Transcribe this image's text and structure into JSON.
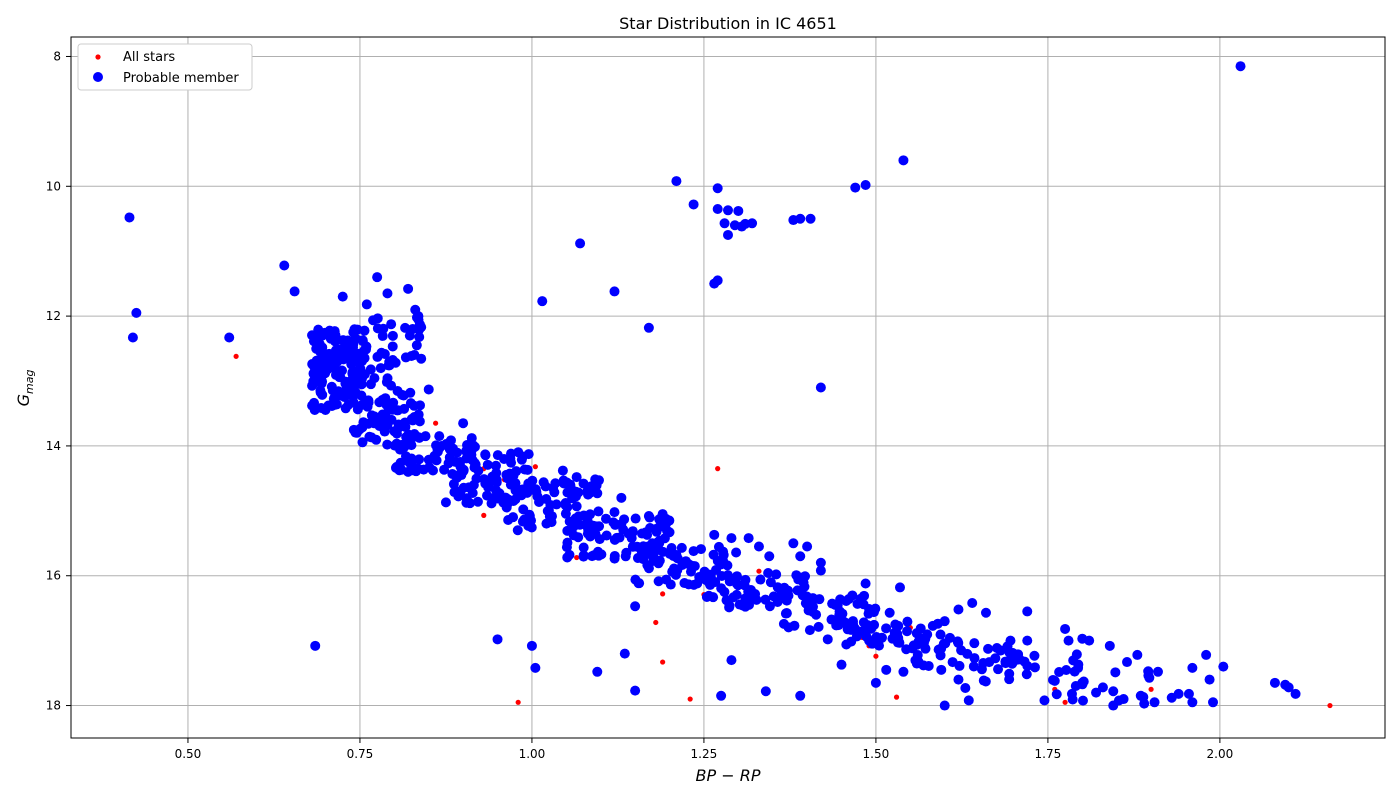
{
  "chart_data": {
    "type": "scatter",
    "title": "Star Distribution in IC 4651",
    "xlabel": "BP − RP",
    "ylabel": "G",
    "ylabel_sub": "mag",
    "xlim": [
      0.33,
      2.24
    ],
    "ylim": [
      18.5,
      7.7
    ],
    "y_inverted": true,
    "x_ticks": [
      0.5,
      0.75,
      1.0,
      1.25,
      1.5,
      1.75,
      2.0
    ],
    "x_tick_labels": [
      "0.50",
      "0.75",
      "1.00",
      "1.25",
      "1.50",
      "1.75",
      "2.00"
    ],
    "y_ticks": [
      8,
      10,
      12,
      14,
      16,
      18
    ],
    "y_tick_labels": [
      "8",
      "10",
      "12",
      "14",
      "16",
      "18"
    ],
    "grid": true,
    "legend_position": "top-left",
    "series": [
      {
        "name": "All stars",
        "color": "#ff0000",
        "marker": "small-dot",
        "points": [
          [
            0.57,
            12.62
          ],
          [
            0.86,
            13.65
          ],
          [
            0.93,
            14.35
          ],
          [
            0.96,
            14.52
          ],
          [
            1.005,
            14.32
          ],
          [
            0.93,
            15.07
          ],
          [
            1.065,
            15.72
          ],
          [
            1.19,
            16.28
          ],
          [
            1.25,
            16.29
          ],
          [
            1.33,
            15.93
          ],
          [
            1.18,
            16.72
          ],
          [
            1.19,
            17.33
          ],
          [
            1.23,
            17.9
          ],
          [
            0.98,
            17.95
          ],
          [
            1.48,
            16.95
          ],
          [
            1.49,
            17.08
          ],
          [
            1.5,
            17.24
          ],
          [
            1.53,
            17.87
          ],
          [
            1.62,
            16.98
          ],
          [
            1.76,
            17.75
          ],
          [
            1.775,
            17.95
          ],
          [
            1.8,
            17.93
          ],
          [
            1.9,
            17.75
          ],
          [
            2.16,
            18.0
          ],
          [
            1.27,
            14.35
          ],
          [
            1.55,
            16.8
          ]
        ]
      },
      {
        "name": "Probable member",
        "color": "#0000ff",
        "marker": "dot",
        "points": [
          [
            2.03,
            8.15
          ],
          [
            1.54,
            9.6
          ],
          [
            1.21,
            9.92
          ],
          [
            1.47,
            10.02
          ],
          [
            1.485,
            9.98
          ],
          [
            1.27,
            10.03
          ],
          [
            1.235,
            10.28
          ],
          [
            1.27,
            10.35
          ],
          [
            1.285,
            10.37
          ],
          [
            1.3,
            10.38
          ],
          [
            1.28,
            10.57
          ],
          [
            1.295,
            10.6
          ],
          [
            1.305,
            10.62
          ],
          [
            1.31,
            10.58
          ],
          [
            1.32,
            10.57
          ],
          [
            1.285,
            10.75
          ],
          [
            1.38,
            10.52
          ],
          [
            1.39,
            10.5
          ],
          [
            1.405,
            10.5
          ],
          [
            1.07,
            10.88
          ],
          [
            0.415,
            10.48
          ],
          [
            0.64,
            11.22
          ],
          [
            0.655,
            11.62
          ],
          [
            0.425,
            11.95
          ],
          [
            0.42,
            12.33
          ],
          [
            0.56,
            12.33
          ],
          [
            1.27,
            11.45
          ],
          [
            1.265,
            11.5
          ],
          [
            1.12,
            11.62
          ],
          [
            1.015,
            11.77
          ],
          [
            1.17,
            12.18
          ],
          [
            1.42,
            13.1
          ],
          [
            0.685,
            17.08
          ],
          [
            0.95,
            16.98
          ],
          [
            1.0,
            17.08
          ],
          [
            1.005,
            17.42
          ],
          [
            1.095,
            17.48
          ],
          [
            1.135,
            17.2
          ],
          [
            1.15,
            16.47
          ],
          [
            1.15,
            17.77
          ],
          [
            1.275,
            17.85
          ],
          [
            1.29,
            17.3
          ],
          [
            1.34,
            17.78
          ],
          [
            1.39,
            17.85
          ],
          [
            1.45,
            17.37
          ],
          [
            1.6,
            18.0
          ],
          [
            1.265,
            15.37
          ],
          [
            1.29,
            15.42
          ],
          [
            1.315,
            15.42
          ],
          [
            1.33,
            15.55
          ],
          [
            1.345,
            15.7
          ],
          [
            1.355,
            15.98
          ],
          [
            1.38,
            15.5
          ],
          [
            1.39,
            15.7
          ],
          [
            1.4,
            15.55
          ],
          [
            1.42,
            15.8
          ],
          [
            1.42,
            15.92
          ],
          [
            1.485,
            16.12
          ],
          [
            1.535,
            16.18
          ],
          [
            1.52,
            16.57
          ],
          [
            1.6,
            16.7
          ],
          [
            1.62,
            16.52
          ],
          [
            1.64,
            16.42
          ],
          [
            1.66,
            16.57
          ],
          [
            1.72,
            16.55
          ],
          [
            1.72,
            17.0
          ],
          [
            1.775,
            16.82
          ],
          [
            1.78,
            17.0
          ],
          [
            1.8,
            16.97
          ],
          [
            1.81,
            17.0
          ],
          [
            1.84,
            17.08
          ],
          [
            1.865,
            17.33
          ],
          [
            1.88,
            17.22
          ],
          [
            1.91,
            17.48
          ],
          [
            1.96,
            17.42
          ],
          [
            1.98,
            17.22
          ],
          [
            2.005,
            17.4
          ],
          [
            1.985,
            17.6
          ],
          [
            2.08,
            17.65
          ],
          [
            2.095,
            17.68
          ],
          [
            2.1,
            17.72
          ],
          [
            2.11,
            17.82
          ],
          [
            1.96,
            17.95
          ],
          [
            1.99,
            17.95
          ],
          [
            1.955,
            17.82
          ],
          [
            1.94,
            17.82
          ],
          [
            1.93,
            17.88
          ],
          [
            1.905,
            17.95
          ],
          [
            1.885,
            17.85
          ],
          [
            1.89,
            17.97
          ],
          [
            1.845,
            18.0
          ],
          [
            1.86,
            17.9
          ],
          [
            1.845,
            17.78
          ],
          [
            1.83,
            17.72
          ],
          [
            1.8,
            17.65
          ],
          [
            1.76,
            17.62
          ],
          [
            1.745,
            17.92
          ],
          [
            1.785,
            17.82
          ],
          [
            1.82,
            17.8
          ],
          [
            1.635,
            17.92
          ],
          [
            1.63,
            17.73
          ],
          [
            1.62,
            17.6
          ],
          [
            1.595,
            17.45
          ],
          [
            1.5,
            17.65
          ],
          [
            1.515,
            17.45
          ],
          [
            1.54,
            17.48
          ],
          [
            1.43,
            16.98
          ],
          [
            0.82,
            14.4
          ],
          [
            0.875,
            14.87
          ],
          [
            0.9,
            13.65
          ],
          [
            0.85,
            13.13
          ],
          [
            0.835,
            12.0
          ],
          [
            0.82,
            11.58
          ],
          [
            0.79,
            11.65
          ],
          [
            0.775,
            11.4
          ],
          [
            0.76,
            11.82
          ],
          [
            0.725,
            11.7
          ],
          [
            1.045,
            14.38
          ],
          [
            1.065,
            14.48
          ],
          [
            1.075,
            14.58
          ],
          [
            1.085,
            14.65
          ],
          [
            1.095,
            14.73
          ],
          [
            1.065,
            14.93
          ],
          [
            1.13,
            14.8
          ],
          [
            1.12,
            15.02
          ],
          [
            1.17,
            15.08
          ],
          [
            1.19,
            15.05
          ],
          [
            1.195,
            15.17
          ],
          [
            1.185,
            15.13
          ],
          [
            1.18,
            15.28
          ],
          [
            1.2,
            15.33
          ],
          [
            1.185,
            15.5
          ],
          [
            1.175,
            15.5
          ],
          [
            1.145,
            15.42
          ],
          [
            1.16,
            15.35
          ],
          [
            1.21,
            15.68
          ],
          [
            1.235,
            15.62
          ]
        ],
        "bands": [
          {
            "x0": 0.68,
            "x1": 0.76,
            "ymin": 12.2,
            "ymax": 13.45,
            "count": 150
          },
          {
            "x0": 0.76,
            "x1": 0.84,
            "ymin": 11.9,
            "ymax": 13.7,
            "count": 60
          },
          {
            "x0": 0.74,
            "x1": 0.84,
            "ymin": 13.3,
            "ymax": 14.0,
            "count": 45
          },
          {
            "x0": 0.8,
            "x1": 0.92,
            "ymin": 13.8,
            "ymax": 14.4,
            "count": 55
          },
          {
            "x0": 0.88,
            "x1": 1.0,
            "ymin": 14.05,
            "ymax": 14.9,
            "count": 70
          },
          {
            "x0": 0.96,
            "x1": 1.1,
            "ymin": 14.5,
            "ymax": 15.3,
            "count": 75
          },
          {
            "x0": 1.05,
            "x1": 1.2,
            "ymin": 15.1,
            "ymax": 15.75,
            "count": 70
          },
          {
            "x0": 1.15,
            "x1": 1.3,
            "ymin": 15.55,
            "ymax": 16.15,
            "count": 60
          },
          {
            "x0": 1.25,
            "x1": 1.4,
            "ymin": 15.95,
            "ymax": 16.5,
            "count": 55
          },
          {
            "x0": 1.35,
            "x1": 1.5,
            "ymin": 16.3,
            "ymax": 16.85,
            "count": 50
          },
          {
            "x0": 1.45,
            "x1": 1.6,
            "ymin": 16.7,
            "ymax": 17.15,
            "count": 45
          },
          {
            "x0": 1.55,
            "x1": 1.7,
            "ymin": 16.95,
            "ymax": 17.4,
            "count": 35
          },
          {
            "x0": 1.65,
            "x1": 1.8,
            "ymin": 17.2,
            "ymax": 17.65,
            "count": 25
          },
          {
            "x0": 1.75,
            "x1": 1.9,
            "ymin": 17.45,
            "ymax": 17.95,
            "count": 15
          }
        ]
      }
    ]
  }
}
